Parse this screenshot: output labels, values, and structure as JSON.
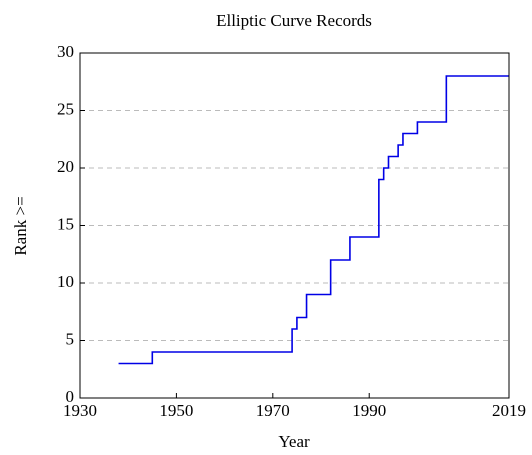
{
  "chart_data": {
    "type": "line",
    "step": "after",
    "title": "Elliptic Curve Records",
    "xlabel": "Year",
    "ylabel": "Rank >=",
    "x": [
      1938,
      1945,
      1974,
      1975,
      1977,
      1982,
      1986,
      1992,
      1993,
      1994,
      1996,
      1997,
      2000,
      2006,
      2019
    ],
    "series": [
      {
        "color": "#0000e6",
        "values": [
          3,
          4,
          6,
          7,
          9,
          12,
          14,
          19,
          20,
          21,
          22,
          23,
          24,
          28,
          28
        ]
      }
    ],
    "xlim": [
      1930,
      2019
    ],
    "xticks": [
      1930,
      1950,
      1970,
      1990,
      2019
    ],
    "ylim": [
      0,
      30
    ],
    "yticks": [
      0,
      5,
      10,
      15,
      20,
      25,
      30
    ],
    "grid": true
  }
}
